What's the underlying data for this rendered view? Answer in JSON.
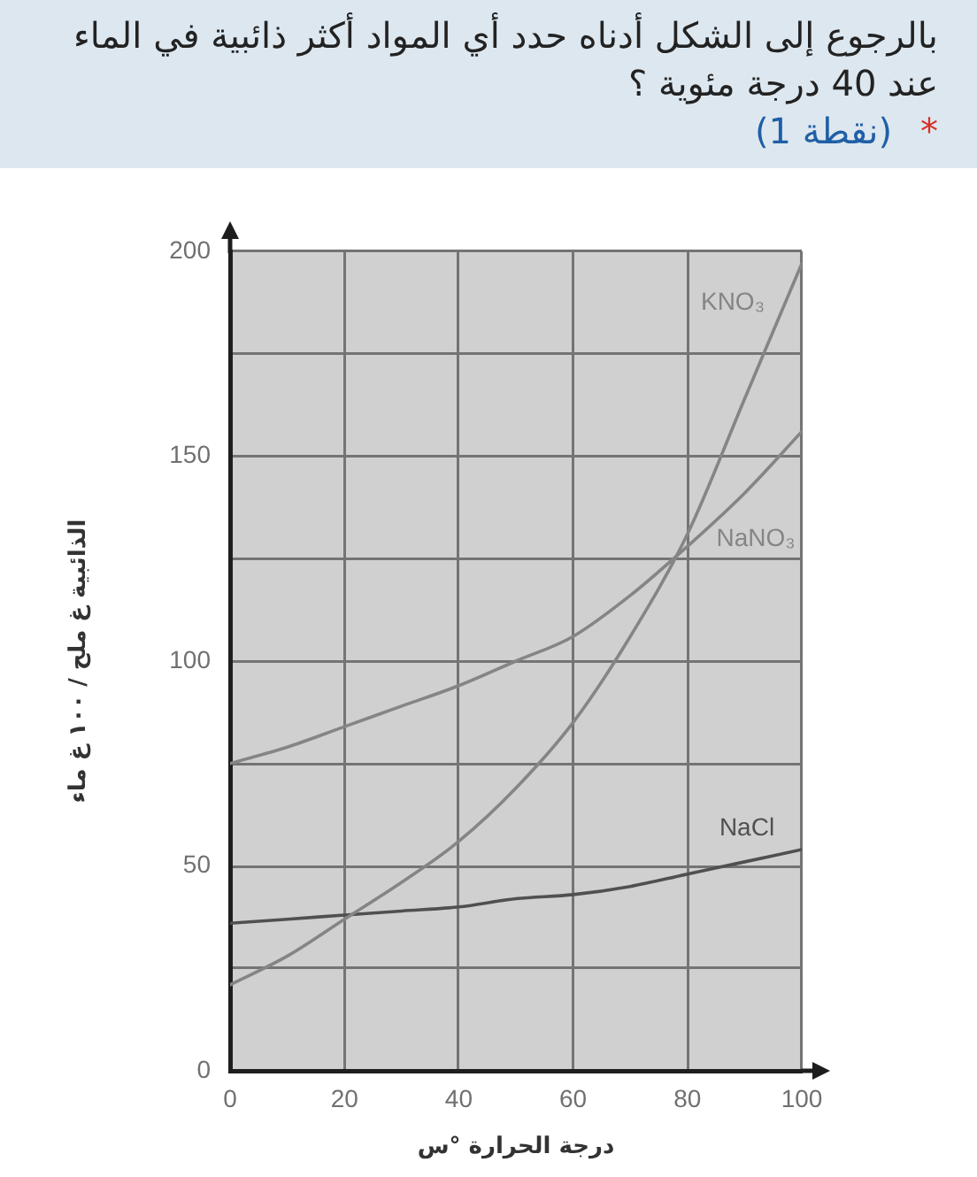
{
  "chart_data": {
    "type": "line",
    "title": "بالرجوع إلى الشكل أدناه حدد أي المواد أكثر ذائبية في الماء عند 40 درجة مئوية ؟",
    "annotations": [
      "*",
      "(1 نقطة)"
    ],
    "xlabel": "درجة الحرارة °س",
    "ylabel": "الذائبية غ ملح / ١٠٠ غ ماء",
    "x": [
      0,
      10,
      20,
      30,
      40,
      50,
      60,
      70,
      80,
      90,
      100
    ],
    "series": [
      {
        "name": "KNO₃",
        "color": "#858585",
        "values": [
          21,
          28,
          37,
          46,
          56,
          69,
          85,
          106,
          131,
          164,
          197
        ]
      },
      {
        "name": "NaNO₃",
        "color": "#858585",
        "values": [
          75,
          79,
          84,
          89,
          94,
          100,
          106,
          116,
          128,
          141,
          156
        ]
      },
      {
        "name": "NaCl",
        "color": "#505050",
        "values": [
          36,
          37,
          38,
          39,
          40,
          42,
          43,
          45,
          48,
          51,
          54
        ]
      }
    ],
    "xlim": [
      0,
      100
    ],
    "xticks": [
      0,
      20,
      40,
      60,
      80,
      100
    ],
    "ylim": [
      0,
      200
    ],
    "yticks": [
      0,
      {
        "value": 25,
        "label": null
      },
      50,
      {
        "value": 75,
        "label": null
      },
      100,
      {
        "value": 125,
        "label": null
      },
      150,
      {
        "value": 175,
        "label": null
      },
      200
    ],
    "grid": true,
    "legend": false,
    "marker": "none"
  }
}
